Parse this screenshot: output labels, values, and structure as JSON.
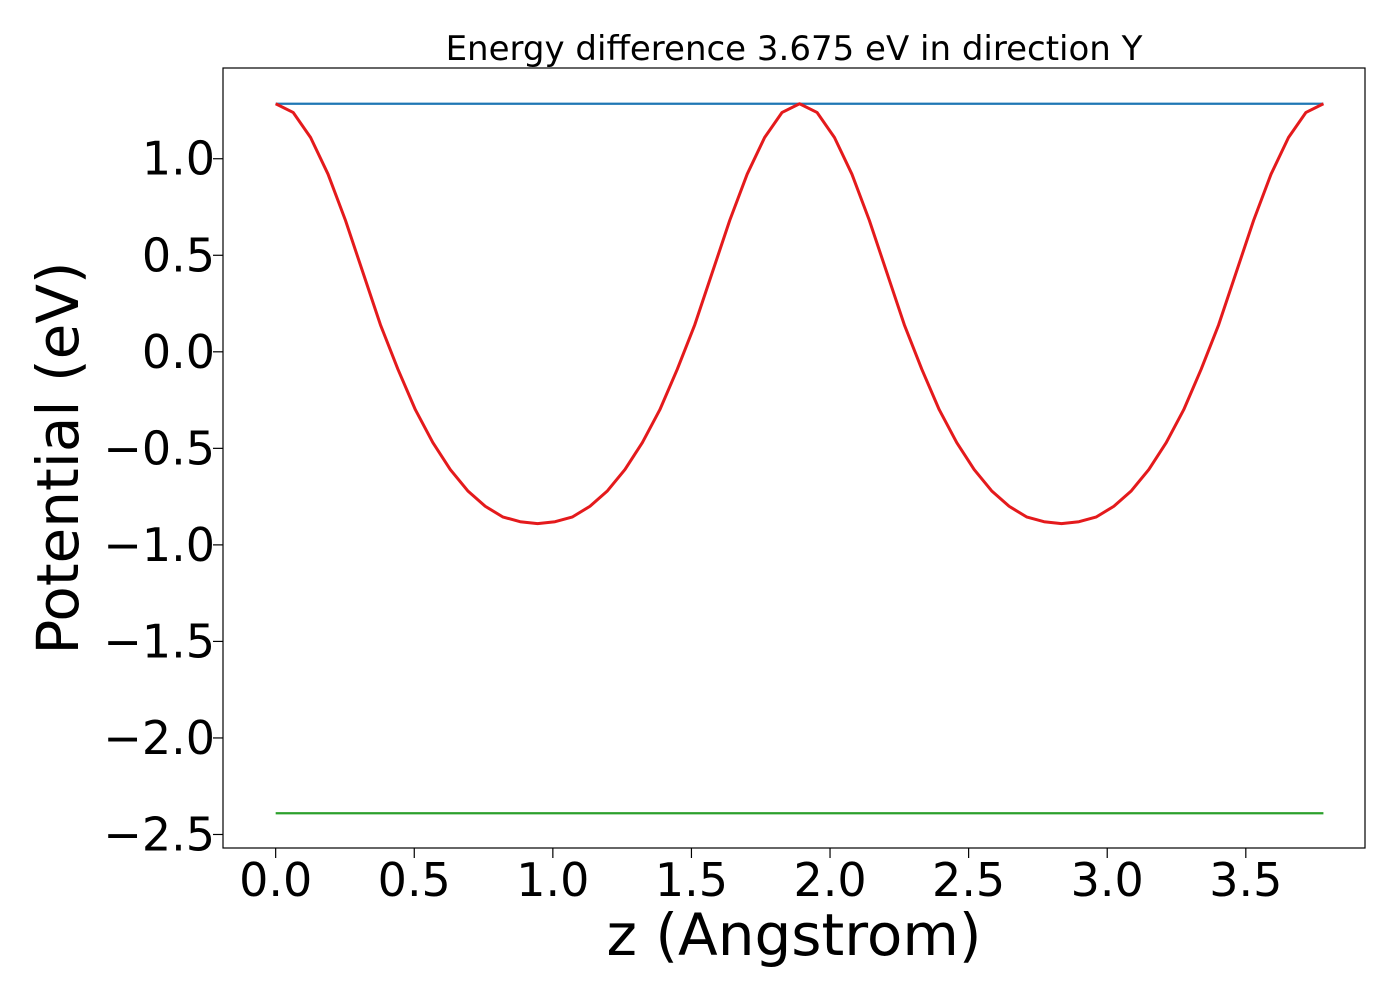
{
  "chart_data": {
    "type": "line",
    "title": "Energy difference 3.675 eV in direction Y",
    "xlabel": "z (Angstrom)",
    "ylabel": "Potential (eV)",
    "xlim": [
      -0.19,
      3.93
    ],
    "ylim": [
      -2.57,
      1.47
    ],
    "xticks": [
      0.0,
      0.5,
      1.0,
      1.5,
      2.0,
      2.5,
      3.0,
      3.5
    ],
    "xtick_labels": [
      "0.0",
      "0.5",
      "1.0",
      "1.5",
      "2.0",
      "2.5",
      "3.0",
      "3.5"
    ],
    "yticks": [
      1.0,
      0.5,
      0.0,
      -0.5,
      -1.0,
      -1.5,
      -2.0,
      -2.5
    ],
    "ytick_labels": [
      "1.0",
      "0.5",
      "0.0",
      "−0.5",
      "−1.0",
      "−1.5",
      "−2.0",
      "−2.5"
    ],
    "grid": false,
    "legend": "none",
    "series": [
      {
        "color": "#1f77b4",
        "x": [
          0.0,
          3.78
        ],
        "y": [
          1.285,
          1.285
        ]
      },
      {
        "color": "#2ca02c",
        "x": [
          0.0,
          3.78
        ],
        "y": [
          -2.39,
          -2.39
        ]
      },
      {
        "color": "#e41a1c",
        "x": [
          0.0,
          0.063,
          0.126,
          0.189,
          0.252,
          0.315,
          0.378,
          0.441,
          0.504,
          0.567,
          0.63,
          0.693,
          0.756,
          0.819,
          0.882,
          0.945,
          1.008,
          1.071,
          1.134,
          1.197,
          1.26,
          1.323,
          1.386,
          1.449,
          1.512,
          1.575,
          1.638,
          1.701,
          1.764,
          1.827,
          1.89,
          1.953,
          2.016,
          2.079,
          2.142,
          2.205,
          2.268,
          2.331,
          2.394,
          2.457,
          2.52,
          2.583,
          2.646,
          2.709,
          2.772,
          2.835,
          2.898,
          2.961,
          3.024,
          3.087,
          3.15,
          3.213,
          3.276,
          3.339,
          3.402,
          3.465,
          3.528,
          3.591,
          3.654,
          3.717,
          3.78
        ],
        "y": [
          1.285,
          1.24,
          1.11,
          0.92,
          0.68,
          0.41,
          0.14,
          -0.09,
          -0.3,
          -0.47,
          -0.61,
          -0.72,
          -0.8,
          -0.855,
          -0.88,
          -0.89,
          -0.88,
          -0.855,
          -0.8,
          -0.72,
          -0.61,
          -0.47,
          -0.3,
          -0.09,
          0.14,
          0.41,
          0.68,
          0.92,
          1.11,
          1.24,
          1.285,
          1.24,
          1.11,
          0.92,
          0.68,
          0.41,
          0.14,
          -0.09,
          -0.3,
          -0.47,
          -0.61,
          -0.72,
          -0.8,
          -0.855,
          -0.88,
          -0.89,
          -0.88,
          -0.855,
          -0.8,
          -0.72,
          -0.61,
          -0.47,
          -0.3,
          -0.09,
          0.14,
          0.41,
          0.68,
          0.92,
          1.11,
          1.24,
          1.285
        ]
      }
    ]
  }
}
